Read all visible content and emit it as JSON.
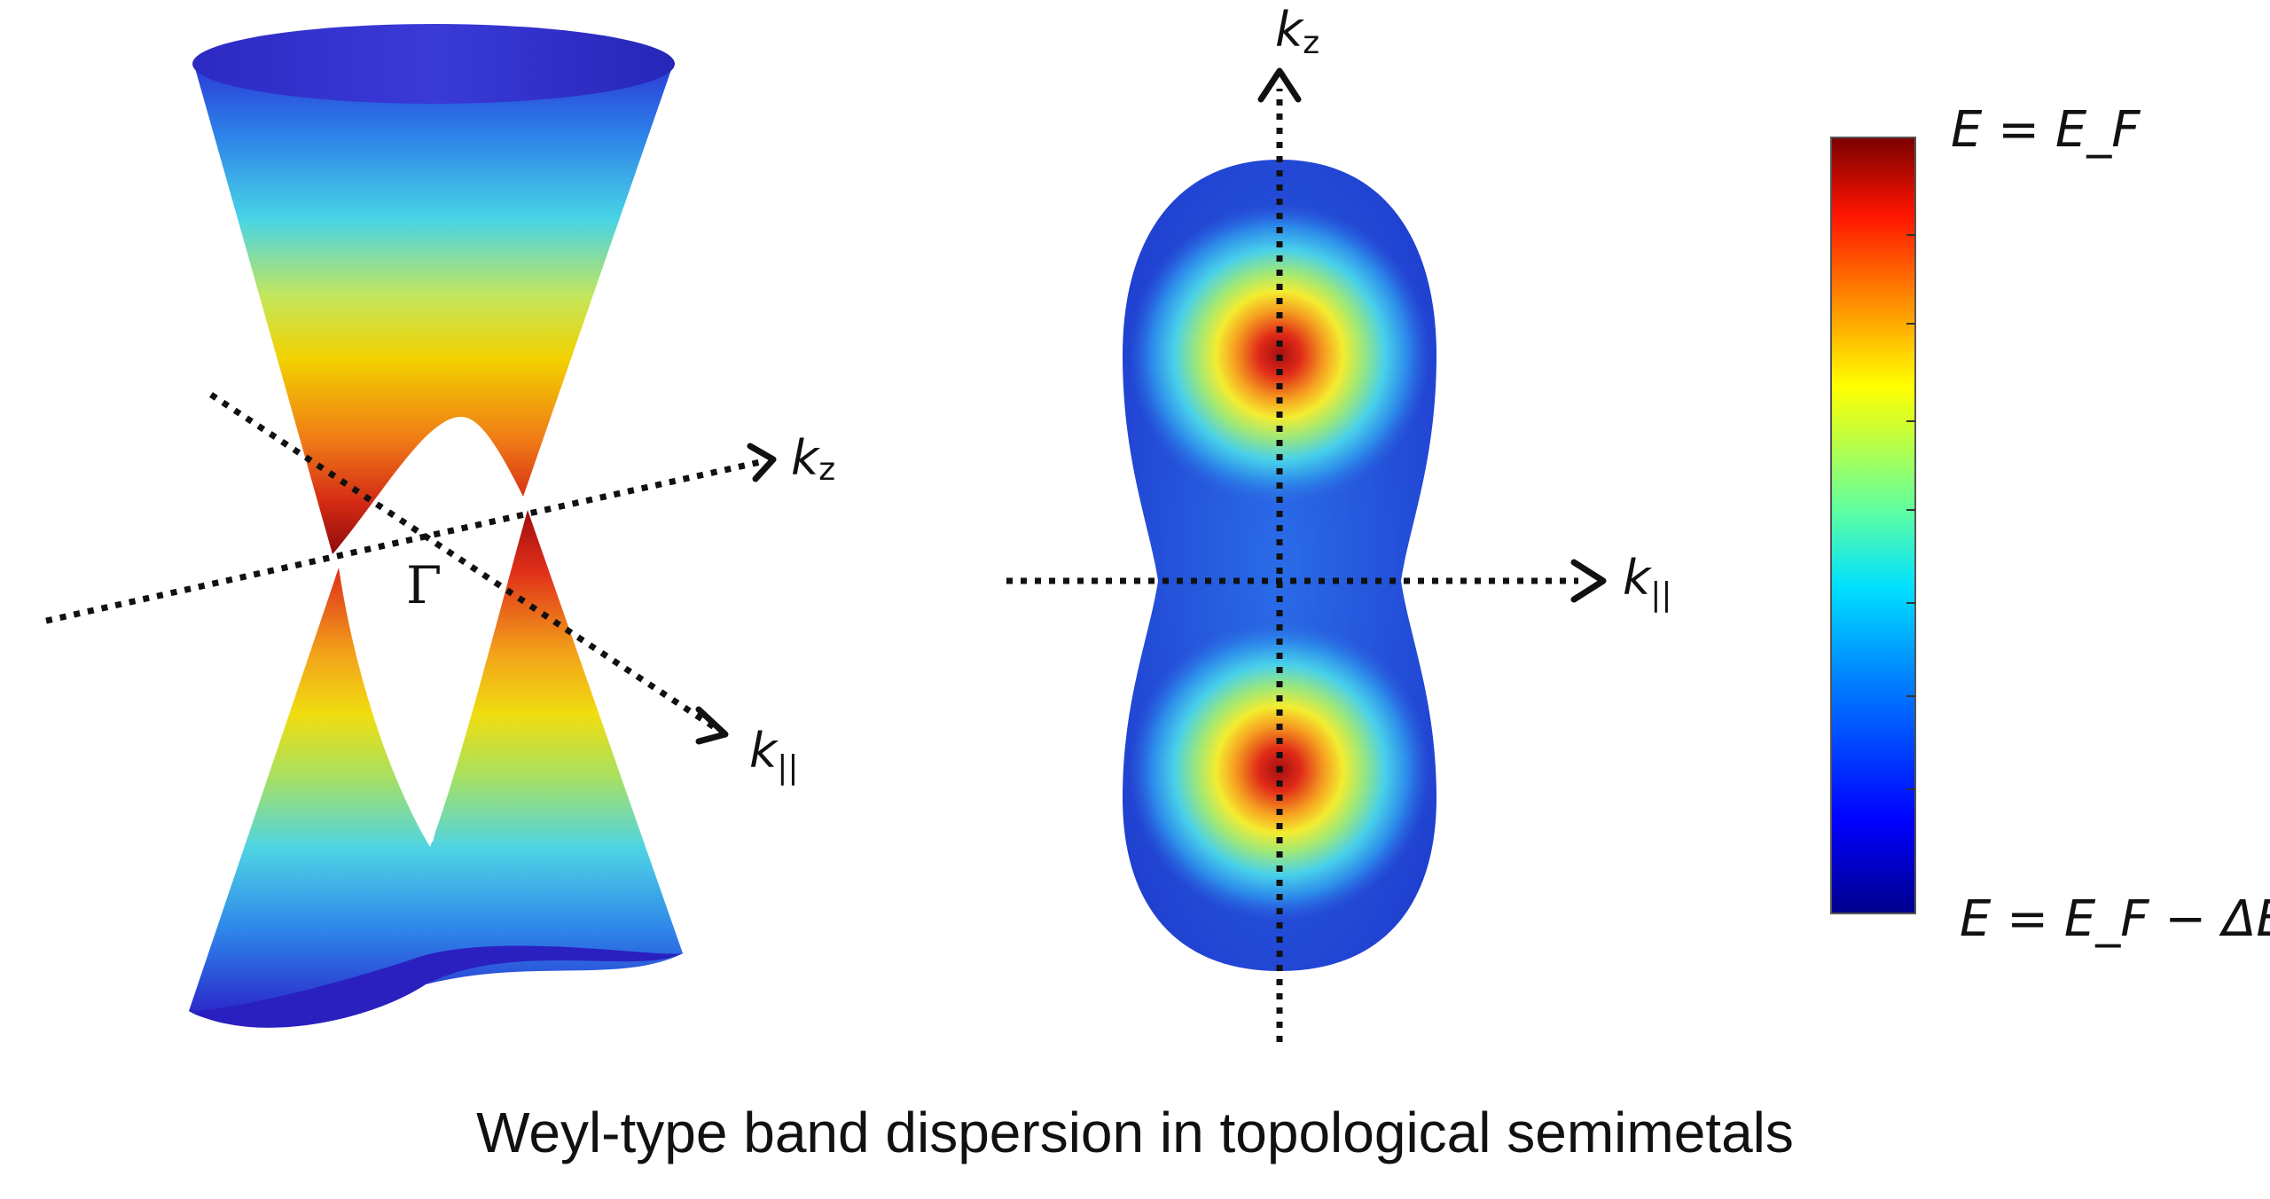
{
  "caption": "Weyl-type band dispersion in topological semimetals",
  "left_panel": {
    "axis_kz": {
      "symbol": "k",
      "subscript": "z"
    },
    "axis_kpar": {
      "symbol": "k",
      "subscript": "||"
    },
    "gamma_point": "Γ"
  },
  "middle_panel": {
    "axis_kz": {
      "symbol": "k",
      "subscript": "z"
    },
    "axis_kpar": {
      "symbol": "k",
      "subscript": "||"
    }
  },
  "colorbar": {
    "top_label": "E = E_F",
    "bottom_label": "E = E_F − ΔE",
    "colormap": [
      "#00008b",
      "#0000ff",
      "#007fff",
      "#00ffff",
      "#7fff7f",
      "#ffff00",
      "#ff7f00",
      "#ff0000",
      "#7f0000"
    ]
  },
  "colors": {
    "cone_top": "#1f2fc8",
    "cone_mid": "#f2d900",
    "cone_tip": "#b01010",
    "text": "#111111"
  }
}
